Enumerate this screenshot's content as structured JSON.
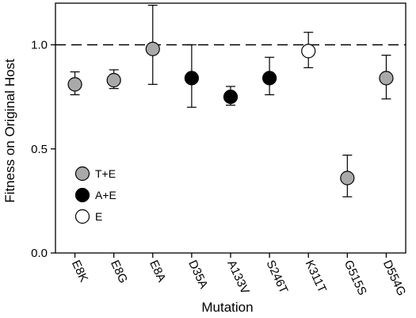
{
  "chart_data": {
    "type": "scatter",
    "xlabel": "Mutation",
    "ylabel": "Fitness on Original Host",
    "ylim": [
      0,
      1.2
    ],
    "yticks": [
      "0.0",
      "0.5",
      "1.0"
    ],
    "reference_line": {
      "y": 1.0,
      "style": "dashed"
    },
    "legend_placement": "lower-left",
    "groups": [
      {
        "label": "T+E",
        "color": "#a9a9a9"
      },
      {
        "label": "A+E",
        "color": "#000000"
      },
      {
        "label": "E",
        "color": "#ffffff"
      }
    ],
    "points": [
      {
        "mutation": "E8K",
        "group": "T+E",
        "y": 0.81,
        "low": 0.76,
        "high": 0.87
      },
      {
        "mutation": "E8G",
        "group": "T+E",
        "y": 0.83,
        "low": 0.79,
        "high": 0.88
      },
      {
        "mutation": "E8A",
        "group": "T+E",
        "y": 0.98,
        "low": 0.81,
        "high": 1.19
      },
      {
        "mutation": "D35A",
        "group": "A+E",
        "y": 0.84,
        "low": 0.7,
        "high": 1.0
      },
      {
        "mutation": "A133V",
        "group": "A+E",
        "y": 0.75,
        "low": 0.71,
        "high": 0.8
      },
      {
        "mutation": "S246T",
        "group": "A+E",
        "y": 0.84,
        "low": 0.76,
        "high": 0.94
      },
      {
        "mutation": "K311T",
        "group": "E",
        "y": 0.97,
        "low": 0.89,
        "high": 1.06
      },
      {
        "mutation": "G515S",
        "group": "T+E",
        "y": 0.36,
        "low": 0.27,
        "high": 0.47
      },
      {
        "mutation": "D554G",
        "group": "T+E",
        "y": 0.84,
        "low": 0.74,
        "high": 0.95
      }
    ]
  }
}
